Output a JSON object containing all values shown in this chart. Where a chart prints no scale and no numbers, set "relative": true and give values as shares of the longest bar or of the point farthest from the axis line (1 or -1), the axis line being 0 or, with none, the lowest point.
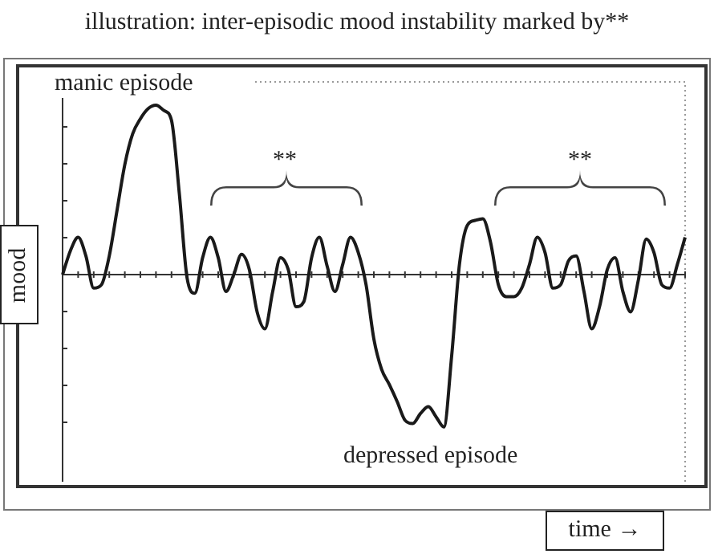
{
  "chart_data": {
    "type": "line",
    "title": "illustration: inter-episodic mood instability marked by**",
    "xlabel": "time →",
    "ylabel": "mood",
    "relative": true,
    "legend": false,
    "tick_labels": false,
    "marker": "none",
    "annotations": [
      "manic episode",
      "depressed episode",
      "**",
      "**"
    ],
    "categories": [
      null,
      null,
      null,
      null,
      null,
      null,
      null,
      null,
      null,
      null,
      null,
      null,
      null,
      null,
      null,
      null,
      null,
      null,
      null,
      null,
      null,
      null,
      null,
      null,
      null,
      null,
      null,
      null,
      null,
      null,
      null,
      null,
      null,
      null,
      null,
      null,
      null,
      null,
      null,
      null,
      null,
      null,
      null,
      null,
      null,
      null,
      null,
      null,
      null,
      null,
      null,
      null,
      null,
      null,
      null,
      null,
      null,
      null,
      null,
      null,
      null,
      null,
      null,
      null,
      null,
      null,
      null,
      null,
      null,
      null,
      null,
      null,
      null,
      null,
      null,
      null,
      null,
      null,
      null,
      null,
      null
    ],
    "series": [
      {
        "color": "#1a1a1a",
        "values": [
          0,
          0.14,
          0.22,
          0.11,
          -0.08,
          -0.06,
          0.11,
          0.38,
          0.65,
          0.83,
          0.92,
          0.98,
          1,
          0.97,
          0.91,
          0.48,
          -0.02,
          -0.11,
          0.1,
          0.22,
          0.1,
          -0.1,
          0,
          0.12,
          0.03,
          -0.22,
          -0.32,
          -0.1,
          0.1,
          0.03,
          -0.19,
          -0.16,
          0.1,
          0.22,
          0.05,
          -0.1,
          0.06,
          0.22,
          0.13,
          -0.06,
          -0.38,
          -0.56,
          -0.65,
          -0.75,
          -0.86,
          -0.88,
          -0.82,
          -0.78,
          -0.84,
          -0.9,
          -0.48,
          0.06,
          0.29,
          0.32,
          0.33,
          0.19,
          -0.06,
          -0.13,
          -0.13,
          -0.08,
          0.06,
          0.22,
          0.13,
          -0.08,
          -0.06,
          0.08,
          0.11,
          -0.1,
          -0.32,
          -0.19,
          0.03,
          0.1,
          -0.1,
          -0.22,
          -0.03,
          0.21,
          0.13,
          -0.06,
          -0.08,
          0.06,
          0.22
        ]
      }
    ]
  }
}
